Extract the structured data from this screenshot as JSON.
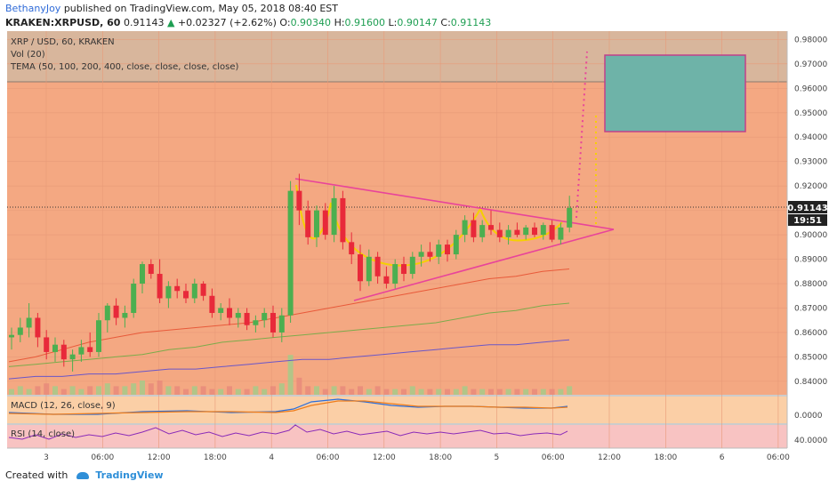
{
  "header": {
    "author": "BethanyJoy",
    "published": "published on TradingView.com, May 05, 2018 08:40 EST",
    "symbol": "KRAKEN:XRPUSD, 60",
    "last": "0.91143",
    "change_arrow": "▲",
    "change": "+0.02327 (+2.62%)",
    "open_label": "O:",
    "open": "0.90340",
    "high_label": "H:",
    "high": "0.91600",
    "low_label": "L:",
    "low": "0.90147",
    "close_label": "C:",
    "close": "0.91143"
  },
  "legend": {
    "line1": "XRP / USD, 60, KRAKEN",
    "line2": "Vol (20)",
    "line3": "TEMA (50, 100, 200, 400, close, close, close, close)"
  },
  "macd_label": "MACD (12, 26, close, 9)",
  "rsi_label": "RSI (14, close)",
  "price_badge": "0.91143",
  "countdown_badge": "19:51",
  "footer": {
    "created_with": "Created with",
    "brand": "TradingView"
  },
  "colors": {
    "bg_orange": "#f4a882",
    "target_band": "#d8b69c",
    "bull": "#4caf50",
    "bear": "#e8293a",
    "triangle": "#e8449a",
    "cup": "#f5d000",
    "target_box": "#6eb3a8",
    "macd_bg": "#fbcfa6",
    "rsi_bg": "#f8c3c2"
  },
  "chart_data": {
    "type": "candlestick",
    "title": "XRP / USD, 60, KRAKEN",
    "y_ticks": [
      "0.98000",
      "0.97000",
      "0.96000",
      "0.95000",
      "0.94000",
      "0.93000",
      "0.92000",
      "0.91000",
      "0.90000",
      "0.89000",
      "0.88000",
      "0.87000",
      "0.86000",
      "0.85000",
      "0.84000"
    ],
    "ylim": [
      0.836,
      0.982
    ],
    "x_ticks": [
      "3",
      "06:00",
      "12:00",
      "18:00",
      "4",
      "06:00",
      "12:00",
      "18:00",
      "5",
      "06:00",
      "12:00",
      "18:00",
      "6",
      "06:00"
    ],
    "macd_ticks": [
      "0.0000"
    ],
    "rsi_ticks": [
      "40.0000"
    ],
    "candles": [
      [
        0.858,
        0.862,
        0.853,
        0.859
      ],
      [
        0.859,
        0.866,
        0.856,
        0.862
      ],
      [
        0.862,
        0.872,
        0.858,
        0.866
      ],
      [
        0.866,
        0.868,
        0.854,
        0.858
      ],
      [
        0.858,
        0.861,
        0.849,
        0.852
      ],
      [
        0.852,
        0.858,
        0.848,
        0.855
      ],
      [
        0.855,
        0.857,
        0.846,
        0.849
      ],
      [
        0.849,
        0.853,
        0.844,
        0.851
      ],
      [
        0.851,
        0.857,
        0.848,
        0.854
      ],
      [
        0.854,
        0.86,
        0.85,
        0.852
      ],
      [
        0.852,
        0.868,
        0.85,
        0.865
      ],
      [
        0.865,
        0.872,
        0.86,
        0.871
      ],
      [
        0.871,
        0.874,
        0.863,
        0.866
      ],
      [
        0.866,
        0.871,
        0.862,
        0.868
      ],
      [
        0.868,
        0.882,
        0.866,
        0.88
      ],
      [
        0.88,
        0.889,
        0.876,
        0.888
      ],
      [
        0.888,
        0.89,
        0.882,
        0.884
      ],
      [
        0.884,
        0.89,
        0.872,
        0.874
      ],
      [
        0.874,
        0.881,
        0.87,
        0.879
      ],
      [
        0.879,
        0.882,
        0.874,
        0.877
      ],
      [
        0.877,
        0.88,
        0.872,
        0.874
      ],
      [
        0.874,
        0.882,
        0.872,
        0.88
      ],
      [
        0.88,
        0.881,
        0.873,
        0.875
      ],
      [
        0.875,
        0.878,
        0.866,
        0.868
      ],
      [
        0.868,
        0.872,
        0.865,
        0.87
      ],
      [
        0.87,
        0.874,
        0.863,
        0.866
      ],
      [
        0.866,
        0.87,
        0.862,
        0.868
      ],
      [
        0.868,
        0.87,
        0.861,
        0.863
      ],
      [
        0.863,
        0.867,
        0.86,
        0.865
      ],
      [
        0.865,
        0.87,
        0.862,
        0.868
      ],
      [
        0.868,
        0.871,
        0.858,
        0.86
      ],
      [
        0.86,
        0.87,
        0.856,
        0.867
      ],
      [
        0.867,
        0.922,
        0.864,
        0.918
      ],
      [
        0.918,
        0.925,
        0.904,
        0.91
      ],
      [
        0.91,
        0.914,
        0.896,
        0.899
      ],
      [
        0.899,
        0.912,
        0.895,
        0.91
      ],
      [
        0.91,
        0.913,
        0.898,
        0.9
      ],
      [
        0.9,
        0.92,
        0.897,
        0.915
      ],
      [
        0.915,
        0.918,
        0.894,
        0.897
      ],
      [
        0.897,
        0.901,
        0.888,
        0.892
      ],
      [
        0.892,
        0.896,
        0.877,
        0.881
      ],
      [
        0.881,
        0.894,
        0.879,
        0.891
      ],
      [
        0.891,
        0.893,
        0.88,
        0.883
      ],
      [
        0.883,
        0.887,
        0.878,
        0.88
      ],
      [
        0.88,
        0.89,
        0.878,
        0.888
      ],
      [
        0.888,
        0.891,
        0.881,
        0.884
      ],
      [
        0.884,
        0.893,
        0.882,
        0.891
      ],
      [
        0.891,
        0.896,
        0.887,
        0.893
      ],
      [
        0.893,
        0.897,
        0.889,
        0.891
      ],
      [
        0.891,
        0.898,
        0.888,
        0.896
      ],
      [
        0.896,
        0.898,
        0.889,
        0.892
      ],
      [
        0.892,
        0.902,
        0.89,
        0.9
      ],
      [
        0.9,
        0.908,
        0.897,
        0.906
      ],
      [
        0.906,
        0.909,
        0.897,
        0.899
      ],
      [
        0.899,
        0.906,
        0.897,
        0.904
      ],
      [
        0.904,
        0.91,
        0.9,
        0.902
      ],
      [
        0.902,
        0.905,
        0.897,
        0.899
      ],
      [
        0.899,
        0.904,
        0.896,
        0.902
      ],
      [
        0.902,
        0.905,
        0.899,
        0.9
      ],
      [
        0.9,
        0.904,
        0.898,
        0.903
      ],
      [
        0.903,
        0.905,
        0.899,
        0.9
      ],
      [
        0.9,
        0.905,
        0.898,
        0.904
      ],
      [
        0.904,
        0.906,
        0.897,
        0.898
      ],
      [
        0.898,
        0.905,
        0.896,
        0.903
      ],
      [
        0.903,
        0.916,
        0.901,
        0.911
      ]
    ],
    "tema_series": [
      {
        "color": "#e85a3a",
        "values": [
          0.848,
          0.85,
          0.853,
          0.856,
          0.858,
          0.86,
          0.861,
          0.862,
          0.863,
          0.864,
          0.866,
          0.868,
          0.87,
          0.872,
          0.874,
          0.876,
          0.878,
          0.88,
          0.882,
          0.883,
          0.885,
          0.886
        ]
      },
      {
        "color": "#7cab4a",
        "values": [
          0.846,
          0.847,
          0.848,
          0.849,
          0.85,
          0.851,
          0.853,
          0.854,
          0.856,
          0.857,
          0.858,
          0.859,
          0.86,
          0.861,
          0.862,
          0.863,
          0.864,
          0.866,
          0.868,
          0.869,
          0.871,
          0.872
        ]
      },
      {
        "color": "#6a56c8",
        "values": [
          0.841,
          0.842,
          0.842,
          0.843,
          0.843,
          0.844,
          0.845,
          0.845,
          0.846,
          0.847,
          0.848,
          0.849,
          0.849,
          0.85,
          0.851,
          0.852,
          0.853,
          0.854,
          0.855,
          0.855,
          0.856,
          0.857
        ]
      }
    ],
    "volume": [
      2,
      3,
      2,
      3,
      4,
      3,
      2,
      3,
      2,
      3,
      3,
      4,
      3,
      3,
      4,
      5,
      4,
      5,
      3,
      3,
      2,
      3,
      3,
      2,
      2,
      3,
      2,
      2,
      3,
      2,
      3,
      4,
      14,
      6,
      3,
      3,
      2,
      3,
      3,
      2,
      3,
      2,
      3,
      2,
      2,
      2,
      3,
      2,
      2,
      2,
      2,
      2,
      3,
      2,
      2,
      2,
      2,
      2,
      2,
      2,
      2,
      2,
      2,
      2,
      3
    ]
  }
}
